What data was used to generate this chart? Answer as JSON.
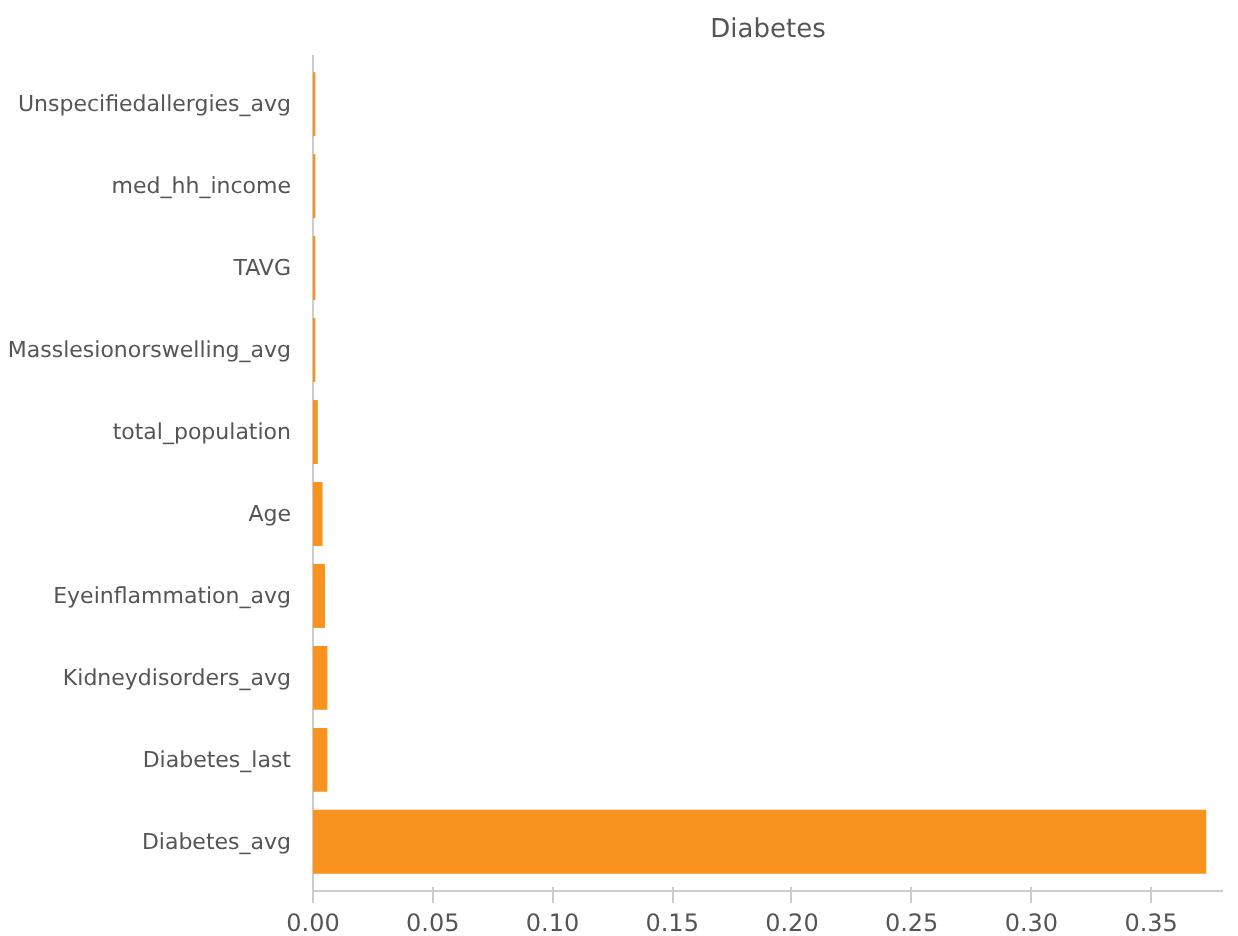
{
  "chart_data": {
    "type": "bar",
    "orientation": "horizontal",
    "title": "Diabetes",
    "categories": [
      "Unspecifiedallergies_avg",
      "med_hh_income",
      "TAVG",
      "Masslesionorswelling_avg",
      "total_population",
      "Age",
      "Eyeinflammation_avg",
      "Kidneydisorders_avg",
      "Diabetes_last",
      "Diabetes_avg"
    ],
    "values": [
      0.001,
      0.001,
      0.001,
      0.001,
      0.002,
      0.004,
      0.005,
      0.006,
      0.006,
      0.373
    ],
    "color": "#f7931e",
    "xlim": [
      0,
      0.38
    ],
    "xticks": [
      {
        "value": 0,
        "label": "0.00"
      },
      0.05,
      {
        "value": 0.1,
        "label": "0.10"
      },
      0.15,
      {
        "value": 0.2,
        "label": "0.20"
      },
      0.25,
      {
        "value": 0.3,
        "label": "0.30"
      },
      0.35
    ],
    "grid": false
  }
}
